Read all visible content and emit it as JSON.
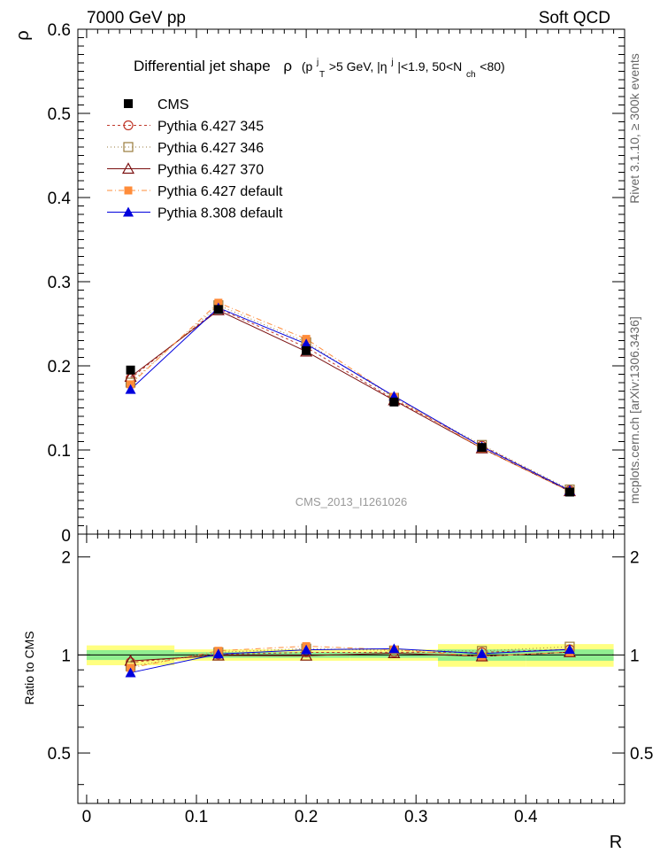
{
  "header": {
    "left": "7000 GeV pp",
    "right": "Soft QCD"
  },
  "side": {
    "rivet": "Rivet 3.1.10, ≥ 300k events",
    "mcplots": "mcplots.cern.ch [arXiv:1306.3436]"
  },
  "title": {
    "main": "Differential jet shape",
    "rho": "ρ",
    "cond1": "(p",
    "sup_j1": "j",
    "sub_T": "T",
    "cond2": ">5 GeV, |η",
    "sup_j2": "j",
    "cond3": "|<1.9, 50<N",
    "sub_ch": "ch",
    "cond4": "<80)"
  },
  "watermark": "CMS_2013_I1261026",
  "colors": {
    "cms": "#000000",
    "p345": "#c0392b",
    "p346": "#9a7b3c",
    "p370": "#7b1010",
    "pdef": "#ff8c3a",
    "p8": "#0000dd",
    "band_inner": "#90ee90",
    "band_outer": "#ffff80"
  },
  "chart_data": {
    "type": "line",
    "xlabel": "R",
    "ylabel": "ρ",
    "ratio_ylabel": "Ratio to CMS",
    "xlim": [
      -0.008,
      0.49
    ],
    "ylim": [
      0,
      0.6
    ],
    "ratio_ylim": [
      0.35,
      2.35
    ],
    "x_ticks": [
      "0",
      "0.1",
      "0.2",
      "0.3",
      "0.4"
    ],
    "y_ticks": [
      "0.1",
      "0.2",
      "0.3",
      "0.4",
      "0.5",
      "0.6"
    ],
    "y_zero_label": "0",
    "ratio_ticks": [
      "0.5",
      "1",
      "2"
    ],
    "x": [
      0.04,
      0.12,
      0.2,
      0.28,
      0.36,
      0.44
    ],
    "bin_edges": [
      0,
      0.08,
      0.16,
      0.24,
      0.32,
      0.4,
      0.48
    ],
    "cms": {
      "name": "CMS",
      "values": [
        0.195,
        0.267,
        0.218,
        0.157,
        0.103,
        0.05
      ]
    },
    "series": [
      {
        "name": "Pythia 6.427 345",
        "values": [
          0.185,
          0.268,
          0.222,
          0.16,
          0.105,
          0.052
        ]
      },
      {
        "name": "Pythia 6.427 346",
        "values": [
          0.18,
          0.272,
          0.228,
          0.162,
          0.106,
          0.053
        ]
      },
      {
        "name": "Pythia 6.427 370",
        "values": [
          0.187,
          0.266,
          0.217,
          0.159,
          0.102,
          0.051
        ]
      },
      {
        "name": "Pythia 6.427 default",
        "values": [
          0.178,
          0.275,
          0.232,
          0.163,
          0.102,
          0.051
        ]
      },
      {
        "name": "Pythia 8.308 default",
        "values": [
          0.172,
          0.269,
          0.226,
          0.164,
          0.104,
          0.052
        ]
      }
    ],
    "ratios": [
      [
        0.949,
        1.004,
        1.018,
        1.019,
        1.019,
        1.04
      ],
      [
        0.923,
        1.019,
        1.046,
        1.032,
        1.029,
        1.06
      ],
      [
        0.959,
        0.996,
        0.995,
        1.013,
        0.99,
        1.02
      ],
      [
        0.913,
        1.03,
        1.064,
        1.038,
        0.99,
        1.02
      ],
      [
        0.882,
        1.007,
        1.037,
        1.045,
        1.01,
        1.04
      ]
    ],
    "band_inner": [
      0.035,
      0.02,
      0.02,
      0.02,
      0.04,
      0.04
    ],
    "band_outer": [
      0.07,
      0.04,
      0.04,
      0.04,
      0.08,
      0.08
    ],
    "legend_position": "top-left"
  }
}
